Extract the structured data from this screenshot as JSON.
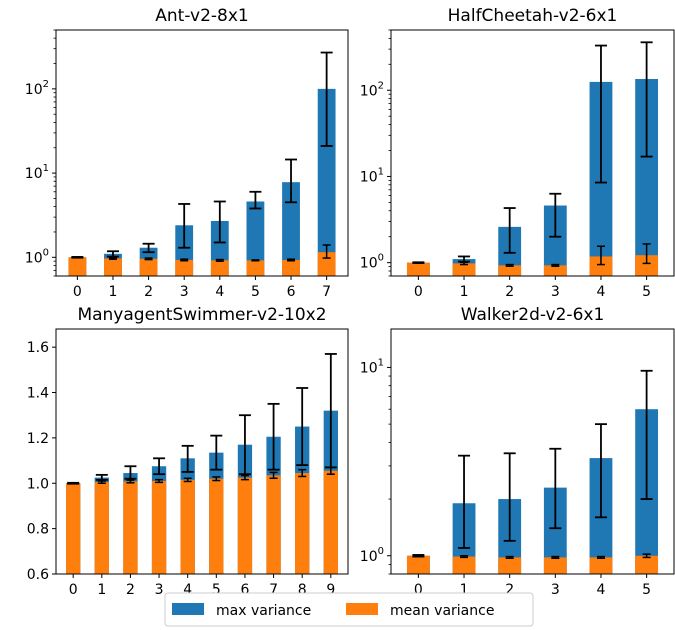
{
  "colors": {
    "max": "#1f77b4",
    "mean": "#ff7f0e",
    "err": "#000000"
  },
  "legend": {
    "entries": [
      "max variance",
      "mean variance"
    ],
    "placement": "bottom-center"
  },
  "chart_data": [
    {
      "type": "bar",
      "title": "Ant-v2-8x1",
      "yscale": "log",
      "ylim": [
        0.6,
        500
      ],
      "ticks": [
        {
          "value": 1,
          "mant": "10",
          "exp": "0"
        },
        {
          "value": 10,
          "mant": "10",
          "exp": "1"
        },
        {
          "value": 100,
          "mant": "10",
          "exp": "2"
        }
      ],
      "categories": [
        "0",
        "1",
        "2",
        "3",
        "4",
        "5",
        "6",
        "7"
      ],
      "series": [
        {
          "name": "max variance",
          "values": [
            1.0,
            1.1,
            1.3,
            2.4,
            2.7,
            4.6,
            7.8,
            100
          ],
          "err_low": [
            0.99,
            1.02,
            1.15,
            1.3,
            1.5,
            3.8,
            4.5,
            21
          ],
          "err_high": [
            1.01,
            1.18,
            1.45,
            4.3,
            4.6,
            6.0,
            14.5,
            270
          ]
        },
        {
          "name": "mean variance",
          "values": [
            1.0,
            0.97,
            0.96,
            0.93,
            0.92,
            0.92,
            0.93,
            1.15
          ],
          "err_low": [
            0.99,
            0.95,
            0.94,
            0.91,
            0.9,
            0.91,
            0.91,
            0.98
          ],
          "err_high": [
            1.01,
            0.99,
            0.98,
            0.95,
            0.94,
            0.93,
            0.95,
            1.4
          ]
        }
      ]
    },
    {
      "type": "bar",
      "title": "HalfCheetah-v2-6x1",
      "yscale": "log",
      "ylim": [
        0.7,
        500
      ],
      "ticks": [
        {
          "value": 1,
          "mant": "10",
          "exp": "0"
        },
        {
          "value": 10,
          "mant": "10",
          "exp": "1"
        },
        {
          "value": 100,
          "mant": "10",
          "exp": "2"
        }
      ],
      "categories": [
        "0",
        "1",
        "2",
        "3",
        "4",
        "5"
      ],
      "series": [
        {
          "name": "max variance",
          "values": [
            1.0,
            1.1,
            2.6,
            4.6,
            125,
            135
          ],
          "err_low": [
            0.99,
            1.03,
            1.3,
            2.0,
            8.5,
            17
          ],
          "err_high": [
            1.01,
            1.18,
            4.3,
            6.3,
            330,
            360
          ]
        },
        {
          "name": "mean variance",
          "values": [
            1.0,
            0.98,
            0.93,
            0.93,
            1.18,
            1.22
          ],
          "err_low": [
            0.99,
            0.95,
            0.91,
            0.91,
            0.95,
            0.98
          ],
          "err_high": [
            1.01,
            1.01,
            0.95,
            0.95,
            1.55,
            1.65
          ]
        }
      ]
    },
    {
      "type": "bar",
      "title": "ManyagentSwimmer-v2-10x2",
      "yscale": "linear",
      "ylim": [
        0.6,
        1.68
      ],
      "ticks": [
        {
          "value": 0.6,
          "label": "0.6"
        },
        {
          "value": 0.8,
          "label": "0.8"
        },
        {
          "value": 1.0,
          "label": "1.0"
        },
        {
          "value": 1.2,
          "label": "1.2"
        },
        {
          "value": 1.4,
          "label": "1.4"
        },
        {
          "value": 1.6,
          "label": "1.6"
        }
      ],
      "categories": [
        "0",
        "1",
        "2",
        "3",
        "4",
        "5",
        "6",
        "7",
        "8",
        "9"
      ],
      "series": [
        {
          "name": "max variance",
          "values": [
            1.0,
            1.025,
            1.045,
            1.075,
            1.11,
            1.135,
            1.17,
            1.205,
            1.25,
            1.32
          ],
          "err_low": [
            0.998,
            1.015,
            1.02,
            1.04,
            1.05,
            1.06,
            1.04,
            1.06,
            1.08,
            1.07
          ],
          "err_high": [
            1.002,
            1.037,
            1.075,
            1.11,
            1.165,
            1.21,
            1.3,
            1.35,
            1.42,
            1.57
          ]
        },
        {
          "name": "mean variance",
          "values": [
            1.0,
            1.005,
            1.008,
            1.01,
            1.015,
            1.02,
            1.025,
            1.035,
            1.045,
            1.055
          ],
          "err_low": [
            0.999,
            1.0,
            1.002,
            1.004,
            1.008,
            1.012,
            1.016,
            1.022,
            1.03,
            1.04
          ],
          "err_high": [
            1.001,
            1.01,
            1.014,
            1.016,
            1.022,
            1.028,
            1.034,
            1.048,
            1.06,
            1.07
          ]
        }
      ]
    },
    {
      "type": "bar",
      "title": "Walker2d-v2-6x1",
      "yscale": "log",
      "ylim": [
        0.8,
        16
      ],
      "ticks": [
        {
          "value": 1,
          "mant": "10",
          "exp": "0"
        },
        {
          "value": 10,
          "mant": "10",
          "exp": "1"
        }
      ],
      "categories": [
        "0",
        "1",
        "2",
        "3",
        "4",
        "5"
      ],
      "series": [
        {
          "name": "max variance",
          "values": [
            1.0,
            1.9,
            2.0,
            2.3,
            3.3,
            6.0
          ],
          "err_low": [
            0.99,
            1.1,
            1.2,
            1.4,
            1.6,
            2.0
          ],
          "err_high": [
            1.01,
            3.4,
            3.5,
            3.7,
            5.0,
            9.6
          ]
        },
        {
          "name": "mean variance",
          "values": [
            1.0,
            0.99,
            0.98,
            0.98,
            0.98,
            1.0
          ],
          "err_low": [
            0.995,
            0.98,
            0.97,
            0.97,
            0.97,
            0.98
          ],
          "err_high": [
            1.005,
            1.0,
            0.99,
            0.99,
            0.99,
            1.02
          ]
        }
      ]
    }
  ]
}
